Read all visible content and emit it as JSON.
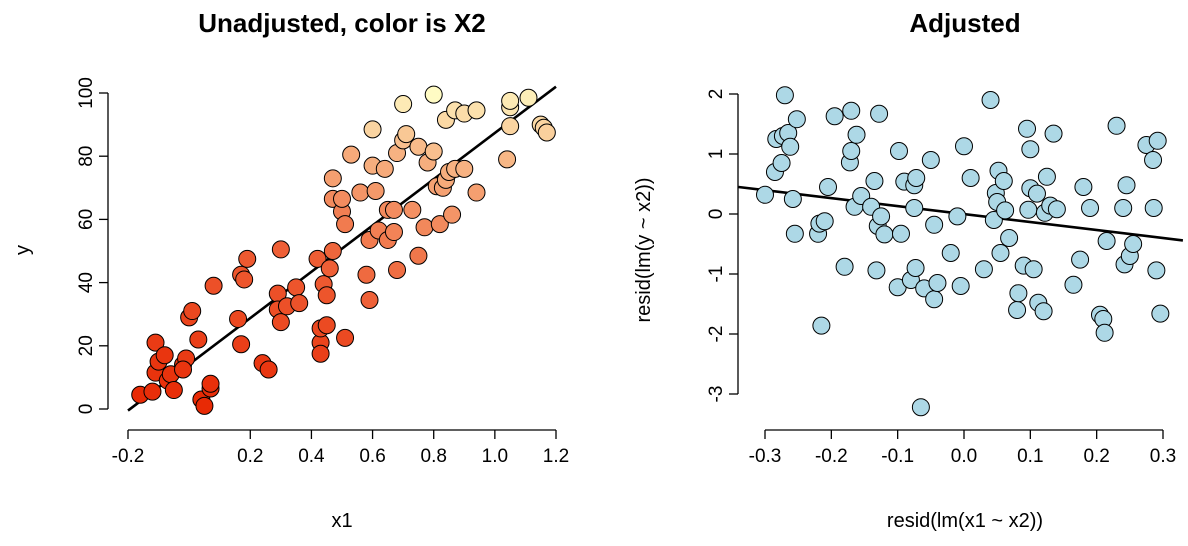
{
  "chart_data": [
    {
      "type": "scatter",
      "title": "Unadjusted, color is X2",
      "xlabel": "x1",
      "ylabel": "y",
      "xlim": [
        -0.2,
        1.2
      ],
      "ylim": [
        0,
        100
      ],
      "xticks": [
        -0.2,
        0.2,
        0.4,
        0.6,
        0.8,
        1.0,
        1.2
      ],
      "xtick_labels": [
        "-0.2",
        "0.2",
        "0.4",
        "0.6",
        "0.8",
        "1.0",
        "1.2"
      ],
      "yticks": [
        0,
        20,
        40,
        60,
        80,
        100
      ],
      "ytick_labels": [
        "0",
        "20",
        "40",
        "60",
        "80",
        "100"
      ],
      "grid": false,
      "color_scale": [
        "#e82a05",
        "#ffffc8"
      ],
      "fit_line": {
        "x": [
          -0.2,
          1.2
        ],
        "y": [
          -0.5,
          102
        ],
        "color": "#000000"
      },
      "points": [
        {
          "x": -0.16,
          "y": 4.5,
          "c": 0.0
        },
        {
          "x": -0.12,
          "y": 5.5,
          "c": 0.02
        },
        {
          "x": -0.11,
          "y": 11.5,
          "c": 0.04
        },
        {
          "x": -0.1,
          "y": 15,
          "c": 0.05
        },
        {
          "x": -0.11,
          "y": 21,
          "c": 0.08
        },
        {
          "x": -0.08,
          "y": 17,
          "c": 0.05
        },
        {
          "x": -0.07,
          "y": 9,
          "c": 0.03
        },
        {
          "x": -0.06,
          "y": 11,
          "c": 0.04
        },
        {
          "x": -0.05,
          "y": 6,
          "c": 0.02
        },
        {
          "x": -0.02,
          "y": 14,
          "c": 0.06
        },
        {
          "x": -0.01,
          "y": 16,
          "c": 0.08
        },
        {
          "x": -0.02,
          "y": 12.5,
          "c": 0.05
        },
        {
          "x": 0.0,
          "y": 29,
          "c": 0.12
        },
        {
          "x": 0.01,
          "y": 31,
          "c": 0.14
        },
        {
          "x": 0.03,
          "y": 22,
          "c": 0.1
        },
        {
          "x": 0.04,
          "y": 3,
          "c": 0.0
        },
        {
          "x": 0.05,
          "y": 1,
          "c": 0.0
        },
        {
          "x": 0.07,
          "y": 6.5,
          "c": 0.02
        },
        {
          "x": 0.07,
          "y": 8,
          "c": 0.03
        },
        {
          "x": 0.08,
          "y": 39,
          "c": 0.18
        },
        {
          "x": 0.16,
          "y": 28.5,
          "c": 0.14
        },
        {
          "x": 0.17,
          "y": 20.5,
          "c": 0.1
        },
        {
          "x": 0.17,
          "y": 42.5,
          "c": 0.2
        },
        {
          "x": 0.18,
          "y": 41,
          "c": 0.2
        },
        {
          "x": 0.19,
          "y": 47.5,
          "c": 0.22
        },
        {
          "x": 0.24,
          "y": 14.5,
          "c": 0.07
        },
        {
          "x": 0.26,
          "y": 12.5,
          "c": 0.06
        },
        {
          "x": 0.29,
          "y": 36.5,
          "c": 0.18
        },
        {
          "x": 0.29,
          "y": 31.5,
          "c": 0.17
        },
        {
          "x": 0.3,
          "y": 27.5,
          "c": 0.15
        },
        {
          "x": 0.3,
          "y": 50.5,
          "c": 0.25
        },
        {
          "x": 0.32,
          "y": 32.5,
          "c": 0.18
        },
        {
          "x": 0.35,
          "y": 38.5,
          "c": 0.2
        },
        {
          "x": 0.36,
          "y": 33.5,
          "c": 0.19
        },
        {
          "x": 0.42,
          "y": 47.5,
          "c": 0.24
        },
        {
          "x": 0.43,
          "y": 21,
          "c": 0.12
        },
        {
          "x": 0.43,
          "y": 17.5,
          "c": 0.1
        },
        {
          "x": 0.43,
          "y": 25.5,
          "c": 0.14
        },
        {
          "x": 0.44,
          "y": 39.5,
          "c": 0.22
        },
        {
          "x": 0.45,
          "y": 36,
          "c": 0.2
        },
        {
          "x": 0.45,
          "y": 26.5,
          "c": 0.15
        },
        {
          "x": 0.46,
          "y": 44.5,
          "c": 0.25
        },
        {
          "x": 0.47,
          "y": 50,
          "c": 0.28
        },
        {
          "x": 0.47,
          "y": 66.5,
          "c": 0.45
        },
        {
          "x": 0.47,
          "y": 73,
          "c": 0.55
        },
        {
          "x": 0.5,
          "y": 62.5,
          "c": 0.4
        },
        {
          "x": 0.5,
          "y": 66.5,
          "c": 0.46
        },
        {
          "x": 0.51,
          "y": 58.5,
          "c": 0.38
        },
        {
          "x": 0.51,
          "y": 22.5,
          "c": 0.15
        },
        {
          "x": 0.53,
          "y": 80.5,
          "c": 0.6
        },
        {
          "x": 0.56,
          "y": 68.5,
          "c": 0.5
        },
        {
          "x": 0.58,
          "y": 42.5,
          "c": 0.3
        },
        {
          "x": 0.59,
          "y": 53.5,
          "c": 0.38
        },
        {
          "x": 0.59,
          "y": 34.5,
          "c": 0.26
        },
        {
          "x": 0.6,
          "y": 77,
          "c": 0.62
        },
        {
          "x": 0.6,
          "y": 88.5,
          "c": 0.8
        },
        {
          "x": 0.61,
          "y": 69,
          "c": 0.52
        },
        {
          "x": 0.62,
          "y": 56.5,
          "c": 0.4
        },
        {
          "x": 0.64,
          "y": 76,
          "c": 0.6
        },
        {
          "x": 0.65,
          "y": 63,
          "c": 0.45
        },
        {
          "x": 0.65,
          "y": 53.5,
          "c": 0.38
        },
        {
          "x": 0.67,
          "y": 56,
          "c": 0.42
        },
        {
          "x": 0.67,
          "y": 63,
          "c": 0.46
        },
        {
          "x": 0.68,
          "y": 44,
          "c": 0.32
        },
        {
          "x": 0.68,
          "y": 81,
          "c": 0.64
        },
        {
          "x": 0.7,
          "y": 96.5,
          "c": 0.9
        },
        {
          "x": 0.7,
          "y": 85,
          "c": 0.7
        },
        {
          "x": 0.71,
          "y": 87,
          "c": 0.74
        },
        {
          "x": 0.73,
          "y": 63,
          "c": 0.48
        },
        {
          "x": 0.75,
          "y": 48.5,
          "c": 0.36
        },
        {
          "x": 0.75,
          "y": 83,
          "c": 0.68
        },
        {
          "x": 0.77,
          "y": 57.5,
          "c": 0.44
        },
        {
          "x": 0.78,
          "y": 78,
          "c": 0.62
        },
        {
          "x": 0.8,
          "y": 81.5,
          "c": 0.7
        },
        {
          "x": 0.8,
          "y": 99.5,
          "c": 0.98
        },
        {
          "x": 0.81,
          "y": 70.5,
          "c": 0.56
        },
        {
          "x": 0.82,
          "y": 58.5,
          "c": 0.45
        },
        {
          "x": 0.83,
          "y": 70,
          "c": 0.56
        },
        {
          "x": 0.84,
          "y": 72.5,
          "c": 0.6
        },
        {
          "x": 0.84,
          "y": 91.5,
          "c": 0.82
        },
        {
          "x": 0.85,
          "y": 75,
          "c": 0.62
        },
        {
          "x": 0.86,
          "y": 61.5,
          "c": 0.5
        },
        {
          "x": 0.87,
          "y": 76,
          "c": 0.64
        },
        {
          "x": 0.87,
          "y": 94.5,
          "c": 0.86
        },
        {
          "x": 0.9,
          "y": 76,
          "c": 0.64
        },
        {
          "x": 0.9,
          "y": 93.5,
          "c": 0.84
        },
        {
          "x": 0.94,
          "y": 68.5,
          "c": 0.55
        },
        {
          "x": 0.94,
          "y": 94.5,
          "c": 0.86
        },
        {
          "x": 1.04,
          "y": 79,
          "c": 0.66
        },
        {
          "x": 1.05,
          "y": 89.5,
          "c": 0.8
        },
        {
          "x": 1.05,
          "y": 95.5,
          "c": 0.88
        },
        {
          "x": 1.05,
          "y": 97.5,
          "c": 0.9
        },
        {
          "x": 1.11,
          "y": 98.5,
          "c": 0.92
        },
        {
          "x": 1.15,
          "y": 90,
          "c": 0.82
        },
        {
          "x": 1.16,
          "y": 89,
          "c": 0.8
        },
        {
          "x": 1.17,
          "y": 87.5,
          "c": 0.78
        }
      ]
    },
    {
      "type": "scatter",
      "title": "Adjusted",
      "xlabel": "resid(lm(x1 ~ x2))",
      "ylabel": "resid(lm(y ~ x2))",
      "xlim": [
        -0.32,
        0.32
      ],
      "ylim": [
        -3.3,
        2.1
      ],
      "xticks": [
        -0.3,
        -0.2,
        -0.1,
        0.0,
        0.1,
        0.2,
        0.3
      ],
      "xtick_labels": [
        "-0.3",
        "-0.2",
        "-0.1",
        "0.0",
        "0.1",
        "0.2",
        "0.3"
      ],
      "yticks": [
        -3,
        -2,
        -1,
        0,
        1,
        2
      ],
      "ytick_labels": [
        "-3",
        "-2",
        "-1",
        "0",
        "1",
        "2"
      ],
      "grid": false,
      "point_color": "#add8e6",
      "fit_line": {
        "x": [
          -0.34,
          0.33
        ],
        "y": [
          0.45,
          -0.44
        ],
        "color": "#000000"
      },
      "points": [
        {
          "x": -0.3,
          "y": 0.32
        },
        {
          "x": -0.285,
          "y": 0.7
        },
        {
          "x": -0.283,
          "y": 1.25
        },
        {
          "x": -0.275,
          "y": 0.85
        },
        {
          "x": -0.273,
          "y": 1.3
        },
        {
          "x": -0.27,
          "y": 1.98
        },
        {
          "x": -0.265,
          "y": 1.35
        },
        {
          "x": -0.262,
          "y": 1.12
        },
        {
          "x": -0.258,
          "y": 0.25
        },
        {
          "x": -0.255,
          "y": -0.33
        },
        {
          "x": -0.252,
          "y": 1.58
        },
        {
          "x": -0.22,
          "y": -0.33
        },
        {
          "x": -0.218,
          "y": -0.16
        },
        {
          "x": -0.215,
          "y": -1.86
        },
        {
          "x": -0.21,
          "y": -0.12
        },
        {
          "x": -0.205,
          "y": 0.45
        },
        {
          "x": -0.195,
          "y": 1.63
        },
        {
          "x": -0.18,
          "y": -0.88
        },
        {
          "x": -0.172,
          "y": 0.86
        },
        {
          "x": -0.17,
          "y": 1.72
        },
        {
          "x": -0.17,
          "y": 1.05
        },
        {
          "x": -0.165,
          "y": 0.12
        },
        {
          "x": -0.162,
          "y": 1.32
        },
        {
          "x": -0.155,
          "y": 0.3
        },
        {
          "x": -0.14,
          "y": 0.12
        },
        {
          "x": -0.135,
          "y": 0.55
        },
        {
          "x": -0.132,
          "y": -0.94
        },
        {
          "x": -0.13,
          "y": -0.2
        },
        {
          "x": -0.128,
          "y": 1.67
        },
        {
          "x": -0.125,
          "y": -0.04
        },
        {
          "x": -0.12,
          "y": -0.34
        },
        {
          "x": -0.1,
          "y": -1.22
        },
        {
          "x": -0.098,
          "y": 1.05
        },
        {
          "x": -0.095,
          "y": -0.33
        },
        {
          "x": -0.09,
          "y": 0.54
        },
        {
          "x": -0.08,
          "y": -1.1
        },
        {
          "x": -0.075,
          "y": 0.48
        },
        {
          "x": -0.075,
          "y": 0.1
        },
        {
          "x": -0.073,
          "y": -0.9
        },
        {
          "x": -0.072,
          "y": 0.6
        },
        {
          "x": -0.065,
          "y": -3.22
        },
        {
          "x": -0.06,
          "y": -1.24
        },
        {
          "x": -0.05,
          "y": 0.9
        },
        {
          "x": -0.045,
          "y": -0.18
        },
        {
          "x": -0.045,
          "y": -1.42
        },
        {
          "x": -0.04,
          "y": -1.15
        },
        {
          "x": -0.02,
          "y": -0.65
        },
        {
          "x": -0.01,
          "y": -0.04
        },
        {
          "x": -0.005,
          "y": -1.2
        },
        {
          "x": 0.0,
          "y": 1.13
        },
        {
          "x": 0.01,
          "y": 0.6
        },
        {
          "x": 0.03,
          "y": -0.92
        },
        {
          "x": 0.04,
          "y": 1.9
        },
        {
          "x": 0.045,
          "y": -0.1
        },
        {
          "x": 0.048,
          "y": 0.35
        },
        {
          "x": 0.05,
          "y": 0.2
        },
        {
          "x": 0.052,
          "y": 0.72
        },
        {
          "x": 0.055,
          "y": -0.65
        },
        {
          "x": 0.06,
          "y": 0.55
        },
        {
          "x": 0.062,
          "y": 0.06
        },
        {
          "x": 0.068,
          "y": -0.4
        },
        {
          "x": 0.08,
          "y": -1.6
        },
        {
          "x": 0.082,
          "y": -1.32
        },
        {
          "x": 0.09,
          "y": -0.86
        },
        {
          "x": 0.095,
          "y": 1.42
        },
        {
          "x": 0.097,
          "y": 0.07
        },
        {
          "x": 0.1,
          "y": 1.08
        },
        {
          "x": 0.1,
          "y": 0.43
        },
        {
          "x": 0.105,
          "y": -0.92
        },
        {
          "x": 0.11,
          "y": 0.34
        },
        {
          "x": 0.112,
          "y": -1.48
        },
        {
          "x": 0.12,
          "y": -1.62
        },
        {
          "x": 0.122,
          "y": 0.02
        },
        {
          "x": 0.125,
          "y": 0.62
        },
        {
          "x": 0.13,
          "y": 0.14
        },
        {
          "x": 0.135,
          "y": 1.34
        },
        {
          "x": 0.14,
          "y": 0.08
        },
        {
          "x": 0.165,
          "y": -1.18
        },
        {
          "x": 0.175,
          "y": -0.76
        },
        {
          "x": 0.18,
          "y": 0.45
        },
        {
          "x": 0.19,
          "y": 0.1
        },
        {
          "x": 0.205,
          "y": -1.68
        },
        {
          "x": 0.21,
          "y": -1.75
        },
        {
          "x": 0.212,
          "y": -1.98
        },
        {
          "x": 0.215,
          "y": -0.45
        },
        {
          "x": 0.23,
          "y": 1.47
        },
        {
          "x": 0.24,
          "y": 0.1
        },
        {
          "x": 0.242,
          "y": -0.84
        },
        {
          "x": 0.245,
          "y": 0.48
        },
        {
          "x": 0.25,
          "y": -0.7
        },
        {
          "x": 0.255,
          "y": -0.5
        },
        {
          "x": 0.275,
          "y": 1.15
        },
        {
          "x": 0.285,
          "y": 0.9
        },
        {
          "x": 0.286,
          "y": 0.1
        },
        {
          "x": 0.29,
          "y": -0.94
        },
        {
          "x": 0.292,
          "y": 1.22
        },
        {
          "x": 0.296,
          "y": -1.66
        }
      ]
    }
  ]
}
